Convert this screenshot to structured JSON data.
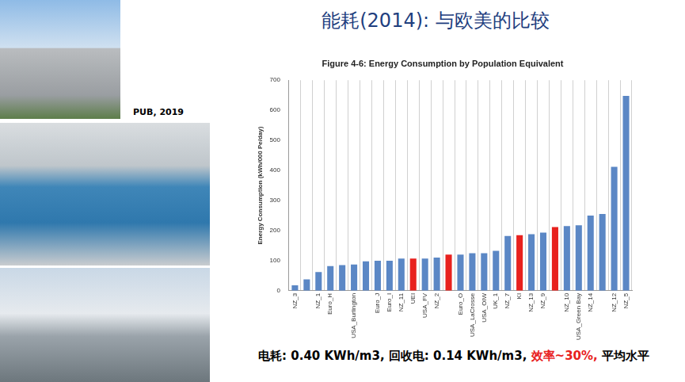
{
  "header": {
    "title": "能耗(2014): 与欧美的比较",
    "photo_credit": "PUB, 2019"
  },
  "chart_data": {
    "type": "bar",
    "title": "Figure 4-6: Energy Consumption by Population Equivalent",
    "y_label": "Energy Consumption (kWh/000 Pe/day)",
    "categories": [
      "NZ_3",
      null,
      "NZ_1",
      "Euro_H",
      null,
      "USA_Burlington",
      null,
      "Euro_J",
      "Euro_I",
      "NZ_11",
      "UEI",
      "USA_FV",
      "NZ_2",
      null,
      "Euro_O",
      "USA_LaCrosse",
      "USA_OIW",
      "UK_1",
      "NZ_7",
      "KI",
      "NZ_13",
      "NZ_9",
      null,
      "NZ_10",
      "USA_Green Bay",
      "NZ_14",
      null,
      "NZ_12",
      "NZ_5"
    ],
    "values": [
      18,
      38,
      62,
      82,
      85,
      87,
      98,
      100,
      100,
      107,
      107,
      107,
      110,
      120,
      120,
      125,
      125,
      133,
      182,
      185,
      188,
      193,
      212,
      215,
      218,
      250,
      255,
      412,
      648
    ],
    "colors": [
      "#5b87c5",
      "#5b87c5",
      "#5b87c5",
      "#5b87c5",
      "#5b87c5",
      "#5b87c5",
      "#5b87c5",
      "#5b87c5",
      "#5b87c5",
      "#5b87c5",
      "#e8211e",
      "#5b87c5",
      "#5b87c5",
      "#e8211e",
      "#5b87c5",
      "#5b87c5",
      "#5b87c5",
      "#5b87c5",
      "#5b87c5",
      "#e8211e",
      "#5b87c5",
      "#5b87c5",
      "#e8211e",
      "#5b87c5",
      "#5b87c5",
      "#5b87c5",
      "#5b87c5",
      "#5b87c5",
      "#5b87c5"
    ],
    "ylim": [
      0,
      700
    ],
    "yticks": [
      0,
      100,
      200,
      300,
      400,
      500,
      600,
      700
    ],
    "grid": true
  },
  "annotation": [
    {
      "text": "电耗: 0.40 KWh/m3, 回收电: 0.14 KWh/m3, ",
      "color": "#000000"
    },
    {
      "text": "效率~30%,",
      "color": "#e8211e"
    },
    {
      "text": " 平均水平",
      "color": "#000000"
    }
  ]
}
